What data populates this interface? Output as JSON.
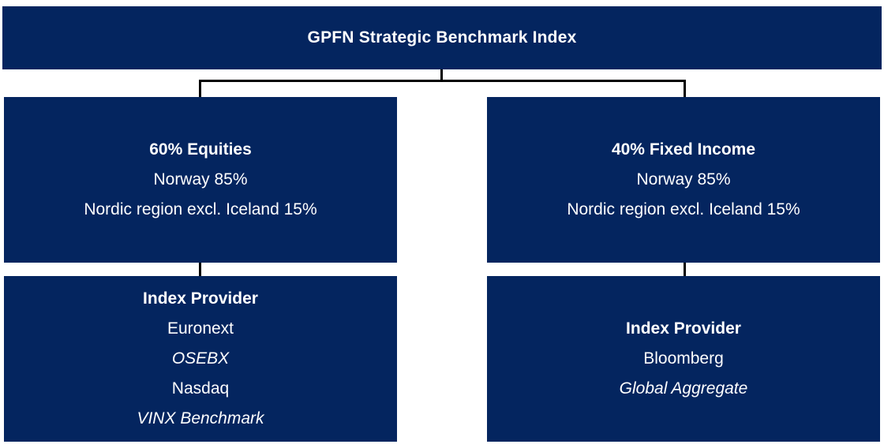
{
  "colors": {
    "box_background": "#04255f",
    "box_text": "#ffffff",
    "connector": "#000000",
    "page_background": "#ffffff"
  },
  "root": {
    "title": "GPFN Strategic Benchmark Index"
  },
  "branches": [
    {
      "title": "60% Equities",
      "lines": [
        "Norway 85%",
        "Nordic region excl. Iceland 15%"
      ],
      "provider": {
        "title": "Index Provider",
        "lines": [
          {
            "text": "Euronext",
            "italic": false
          },
          {
            "text": "OSEBX",
            "italic": true
          },
          {
            "text": "Nasdaq",
            "italic": false
          },
          {
            "text": "VINX Benchmark",
            "italic": true
          }
        ]
      }
    },
    {
      "title": "40% Fixed Income",
      "lines": [
        "Norway 85%",
        "Nordic region excl. Iceland 15%"
      ],
      "provider": {
        "title": "Index Provider",
        "lines": [
          {
            "text": "Bloomberg",
            "italic": false
          },
          {
            "text": "Global Aggregate",
            "italic": true
          }
        ]
      }
    }
  ]
}
